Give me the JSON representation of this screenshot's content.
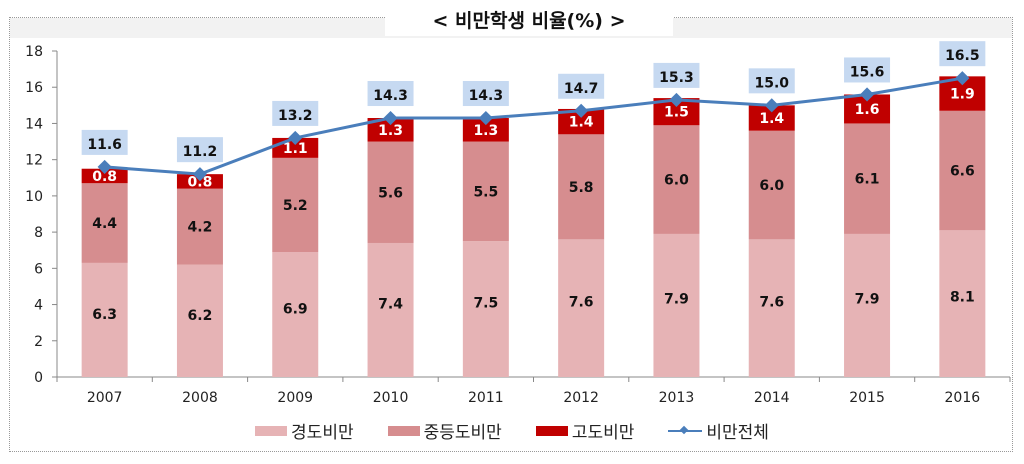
{
  "chart_data": {
    "type": "bar",
    "stacked": true,
    "title": "<  비만학생  비율(%)  >",
    "categories": [
      "2007",
      "2008",
      "2009",
      "2010",
      "2011",
      "2012",
      "2013",
      "2014",
      "2015",
      "2016"
    ],
    "ylim": [
      0,
      18
    ],
    "yticks": [
      0,
      2,
      4,
      6,
      8,
      10,
      12,
      14,
      16,
      18
    ],
    "grid": false,
    "legend_position": "bottom",
    "series": [
      {
        "name": "경도비만",
        "type": "bar",
        "color": "#e6b3b5",
        "values": [
          6.3,
          6.2,
          6.9,
          7.4,
          7.5,
          7.6,
          7.9,
          7.6,
          7.9,
          8.1
        ]
      },
      {
        "name": "중등도비만",
        "type": "bar",
        "color": "#d68d8f",
        "values": [
          4.4,
          4.2,
          5.2,
          5.6,
          5.5,
          5.8,
          6.0,
          6.0,
          6.1,
          6.6
        ]
      },
      {
        "name": "고도비만",
        "type": "bar",
        "color": "#c00000",
        "values": [
          0.8,
          0.8,
          1.1,
          1.3,
          1.3,
          1.4,
          1.5,
          1.4,
          1.6,
          1.9
        ]
      },
      {
        "name": "비만전체",
        "type": "line",
        "color": "#4a7ebb",
        "values": [
          11.6,
          11.2,
          13.2,
          14.3,
          14.3,
          14.7,
          15.3,
          15.0,
          15.6,
          16.5
        ]
      }
    ]
  }
}
